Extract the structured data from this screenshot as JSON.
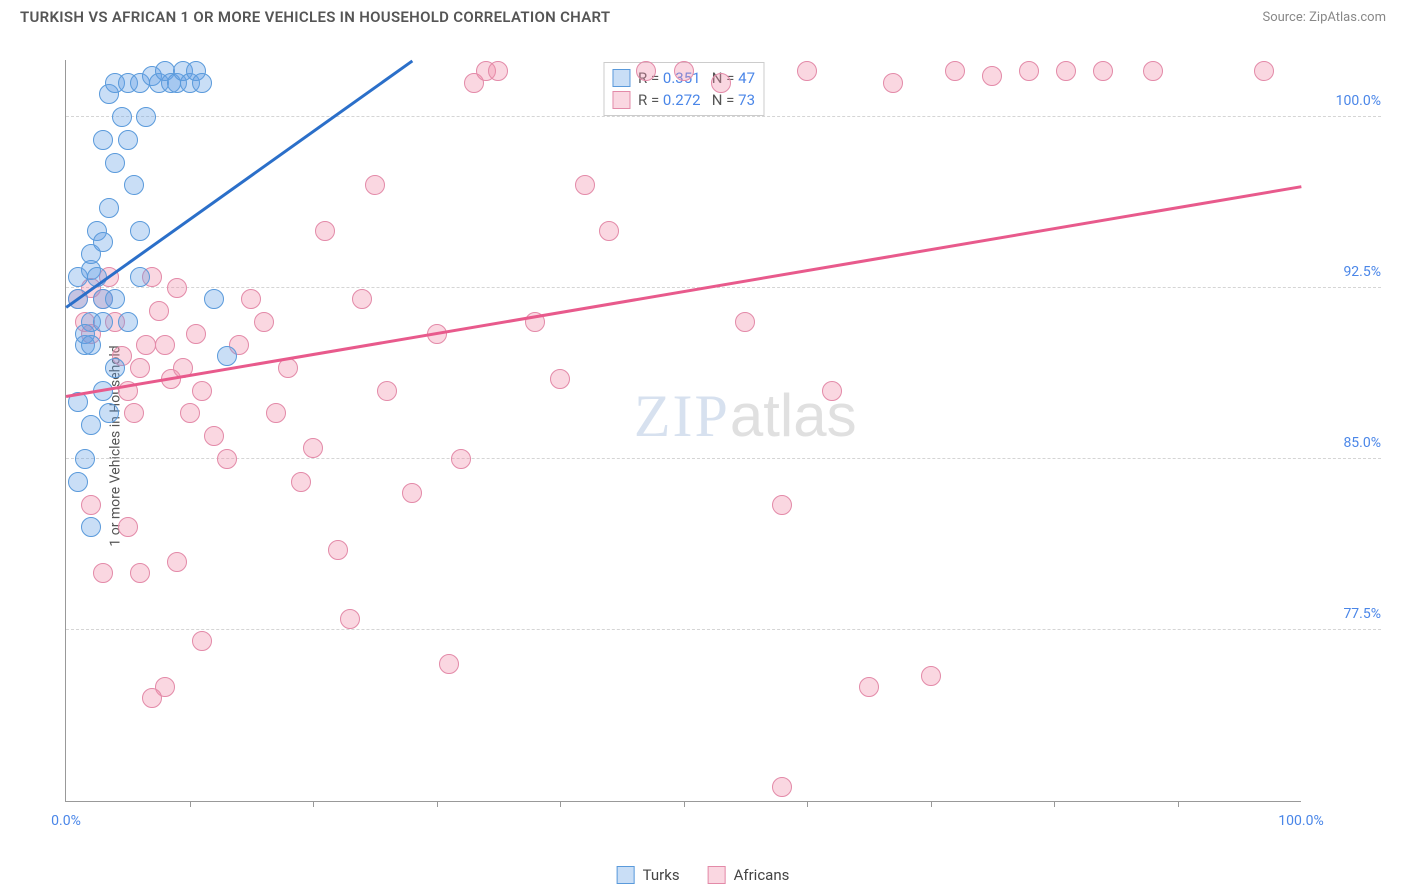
{
  "title": "TURKISH VS AFRICAN 1 OR MORE VEHICLES IN HOUSEHOLD CORRELATION CHART",
  "source": "Source: ZipAtlas.com",
  "ylabel": "1 or more Vehicles in Household",
  "watermark_a": "ZIP",
  "watermark_b": "atlas",
  "chart": {
    "type": "scatter",
    "xlim": [
      0,
      100
    ],
    "ylim": [
      70,
      102.5
    ],
    "yticks": [
      {
        "v": 77.5,
        "label": "77.5%"
      },
      {
        "v": 85.0,
        "label": "85.0%"
      },
      {
        "v": 92.5,
        "label": "92.5%"
      },
      {
        "v": 100.0,
        "label": "100.0%"
      }
    ],
    "xtick_positions": [
      10,
      20,
      30,
      40,
      50,
      60,
      70,
      80,
      90
    ],
    "xlabels": [
      {
        "v": 0,
        "label": "0.0%"
      },
      {
        "v": 100,
        "label": "100.0%"
      }
    ],
    "background_color": "#ffffff",
    "grid_color": "#d5d5d5",
    "series": {
      "turks": {
        "label": "Turks",
        "color_fill": "rgba(100,160,230,0.35)",
        "color_stroke": "#5a9adb",
        "trend_color": "#2b6fc9",
        "trend": {
          "x1": 0,
          "y1": 91.7,
          "x2": 28,
          "y2": 102.5
        },
        "R": "0.351",
        "N": "47",
        "marker_r": 10,
        "points": [
          [
            1,
            92
          ],
          [
            1,
            93
          ],
          [
            1.5,
            90
          ],
          [
            2,
            91
          ],
          [
            2,
            93.3
          ],
          [
            2,
            94
          ],
          [
            2.5,
            95
          ],
          [
            2.5,
            93
          ],
          [
            3,
            92
          ],
          [
            3,
            94.5
          ],
          [
            3,
            99
          ],
          [
            3.5,
            96
          ],
          [
            3.5,
            101
          ],
          [
            4,
            98
          ],
          [
            4,
            101.5
          ],
          [
            4.5,
            100
          ],
          [
            5,
            99
          ],
          [
            5,
            101.5
          ],
          [
            5.5,
            97
          ],
          [
            6,
            101.5
          ],
          [
            6,
            95
          ],
          [
            6.5,
            100
          ],
          [
            7,
            101.8
          ],
          [
            7.5,
            101.5
          ],
          [
            8,
            102
          ],
          [
            8.5,
            101.5
          ],
          [
            9,
            101.5
          ],
          [
            9.5,
            102
          ],
          [
            10,
            101.5
          ],
          [
            10.5,
            102
          ],
          [
            11,
            101.5
          ],
          [
            1,
            87.5
          ],
          [
            1.5,
            85
          ],
          [
            2,
            86.5
          ],
          [
            3,
            88
          ],
          [
            3.5,
            87
          ],
          [
            1,
            84
          ],
          [
            2,
            82
          ],
          [
            4,
            89
          ],
          [
            5,
            91
          ],
          [
            6,
            93
          ],
          [
            12,
            92
          ],
          [
            13,
            89.5
          ],
          [
            1.5,
            90.5
          ],
          [
            2,
            90
          ],
          [
            3,
            91
          ],
          [
            4,
            92
          ]
        ]
      },
      "africans": {
        "label": "Africans",
        "color_fill": "rgba(240,140,170,0.35)",
        "color_stroke": "#e38aa8",
        "trend_color": "#e85a8c",
        "trend": {
          "x1": 0,
          "y1": 87.8,
          "x2": 100,
          "y2": 97.0
        },
        "R": "0.272",
        "N": "73",
        "marker_r": 10,
        "points": [
          [
            1,
            92
          ],
          [
            1.5,
            91
          ],
          [
            2,
            92.5
          ],
          [
            2,
            90.5
          ],
          [
            3,
            92
          ],
          [
            3.5,
            93
          ],
          [
            4,
            91
          ],
          [
            4.5,
            89.5
          ],
          [
            5,
            88
          ],
          [
            5.5,
            87
          ],
          [
            6,
            89
          ],
          [
            6.5,
            90
          ],
          [
            7,
            93
          ],
          [
            7.5,
            91.5
          ],
          [
            8,
            90
          ],
          [
            8.5,
            88.5
          ],
          [
            9,
            92.5
          ],
          [
            9.5,
            89
          ],
          [
            10,
            87
          ],
          [
            10.5,
            90.5
          ],
          [
            11,
            88
          ],
          [
            12,
            86
          ],
          [
            13,
            85
          ],
          [
            14,
            90
          ],
          [
            15,
            92
          ],
          [
            16,
            91
          ],
          [
            17,
            87
          ],
          [
            18,
            89
          ],
          [
            19,
            84
          ],
          [
            20,
            85.5
          ],
          [
            21,
            95
          ],
          [
            22,
            81
          ],
          [
            23,
            78
          ],
          [
            24,
            92
          ],
          [
            25,
            97
          ],
          [
            26,
            88
          ],
          [
            28,
            83.5
          ],
          [
            30,
            90.5
          ],
          [
            31,
            76
          ],
          [
            32,
            85
          ],
          [
            33,
            101.5
          ],
          [
            34,
            102
          ],
          [
            35,
            102
          ],
          [
            38,
            91
          ],
          [
            40,
            88.5
          ],
          [
            42,
            97
          ],
          [
            44,
            95
          ],
          [
            47,
            102
          ],
          [
            50,
            102
          ],
          [
            53,
            101.5
          ],
          [
            55,
            91
          ],
          [
            58,
            83
          ],
          [
            58,
            70.6
          ],
          [
            60,
            102
          ],
          [
            62,
            88
          ],
          [
            65,
            75
          ],
          [
            67,
            101.5
          ],
          [
            70,
            75.5
          ],
          [
            72,
            102
          ],
          [
            75,
            101.8
          ],
          [
            78,
            102
          ],
          [
            81,
            102
          ],
          [
            84,
            102
          ],
          [
            88,
            102
          ],
          [
            97,
            102
          ],
          [
            8,
            75
          ],
          [
            7,
            74.5
          ],
          [
            6,
            80
          ],
          [
            5,
            82
          ],
          [
            9,
            80.5
          ],
          [
            11,
            77
          ],
          [
            2,
            83
          ],
          [
            3,
            80
          ]
        ]
      }
    },
    "legend_top": [
      {
        "series": "turks",
        "r_label": "R =",
        "n_label": "N ="
      },
      {
        "series": "africans",
        "r_label": "R =",
        "n_label": "N ="
      }
    ],
    "legend_bottom": [
      "turks",
      "africans"
    ]
  }
}
